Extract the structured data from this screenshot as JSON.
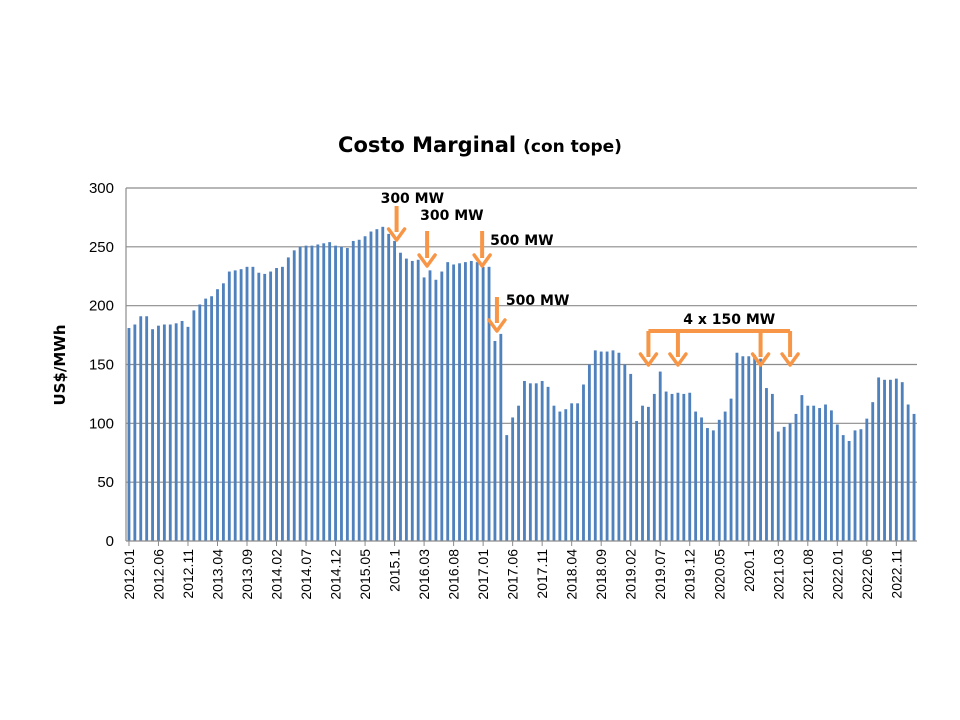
{
  "chart_data": {
    "type": "bar",
    "title": "Costo Marginal",
    "subtitle": "(con tope)",
    "ylabel": "US$/MWh",
    "xlabel": "",
    "ylim": [
      0,
      300
    ],
    "yticks": [
      0,
      50,
      100,
      150,
      200,
      250,
      300
    ],
    "grid": true,
    "bar_color": "#4f81bd",
    "annotation_color": "#f79646",
    "tick_labels": [
      "2012.01",
      "2012.06",
      "2012.11",
      "2013.04",
      "2013.09",
      "2014.02",
      "2014.07",
      "2014.12",
      "2015.05",
      "2015.1",
      "2016.03",
      "2016.08",
      "2017.01",
      "2017.06",
      "2017.11",
      "2018.04",
      "2018.09",
      "2019.02",
      "2019.07",
      "2019.12",
      "2020.05",
      "2020.1",
      "2021.03",
      "2021.08",
      "2022.01",
      "2022.06",
      "2022.11"
    ],
    "values": [
      181,
      184,
      191,
      191,
      180,
      183,
      184,
      184,
      185,
      187,
      182,
      196,
      201,
      206,
      208,
      214,
      219,
      229,
      230,
      231,
      233,
      233,
      228,
      227,
      229,
      232,
      233,
      241,
      247,
      250,
      251,
      251,
      252,
      253,
      254,
      251,
      250,
      249,
      255,
      256,
      259,
      263,
      265,
      267,
      261,
      255,
      245,
      240,
      238,
      239,
      224,
      230,
      222,
      229,
      237,
      235,
      236,
      237,
      238,
      237,
      233,
      233,
      170,
      176,
      90,
      105,
      115,
      136,
      134,
      134,
      136,
      131,
      115,
      110,
      112,
      117,
      117,
      133,
      150,
      162,
      161,
      161,
      162,
      160,
      150,
      142,
      102,
      115,
      114,
      125,
      144,
      127,
      125,
      126,
      125,
      126,
      110,
      105,
      96,
      94,
      103,
      110,
      121,
      160,
      157,
      157,
      158,
      155,
      130,
      125,
      93,
      97,
      100,
      108,
      124,
      115,
      115,
      113,
      116,
      111,
      99,
      90,
      85,
      94,
      95,
      104,
      118,
      139,
      137,
      137,
      138,
      135,
      116,
      108
    ],
    "annotations": [
      {
        "text": "300 MW",
        "at": "2015.1"
      },
      {
        "text": "300 MW",
        "at": "2016.03"
      },
      {
        "text": "500 MW",
        "at": "2017.01"
      },
      {
        "text": "500 MW",
        "at": "2017.03"
      },
      {
        "text": "4 x 150 MW",
        "at": [
          "2019.05",
          "2019.10",
          "2020.12",
          "2021.05"
        ]
      }
    ]
  }
}
